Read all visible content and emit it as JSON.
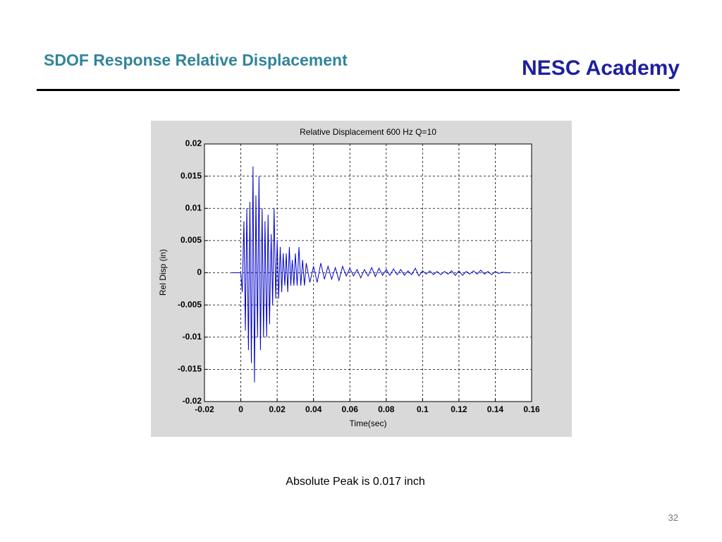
{
  "header": {
    "title": "SDOF Response Relative Displacement",
    "brand": "NESC Academy"
  },
  "caption": "Absolute Peak is 0.017 inch",
  "page_number": "32",
  "chart_data": {
    "type": "line",
    "title": "Relative Displacement 600 Hz  Q=10",
    "x_label": "Time(sec)",
    "y_label": "Rel Disp (in)",
    "xlim": [
      -0.02,
      0.16
    ],
    "xticks": [
      -0.02,
      0,
      0.02,
      0.04,
      0.06,
      0.08,
      0.1,
      0.12,
      0.14,
      0.16
    ],
    "ylim": [
      -0.02,
      0.02
    ],
    "yticks": [
      -0.02,
      -0.015,
      -0.01,
      -0.005,
      0,
      0.005,
      0.01,
      0.015,
      0.02
    ],
    "grid": true,
    "x": [
      -0.005,
      0,
      0.0008,
      0.0017,
      0.0025,
      0.0033,
      0.0042,
      0.005,
      0.0058,
      0.0067,
      0.0075,
      0.0083,
      0.0092,
      0.01,
      0.0108,
      0.0117,
      0.0125,
      0.0133,
      0.0142,
      0.015,
      0.0158,
      0.0167,
      0.0175,
      0.0183,
      0.0192,
      0.02,
      0.0208,
      0.0217,
      0.0225,
      0.0233,
      0.0242,
      0.025,
      0.0258,
      0.0267,
      0.0275,
      0.0283,
      0.0292,
      0.03,
      0.031,
      0.032,
      0.033,
      0.034,
      0.035,
      0.036,
      0.038,
      0.04,
      0.042,
      0.044,
      0.046,
      0.048,
      0.05,
      0.052,
      0.054,
      0.056,
      0.058,
      0.06,
      0.062,
      0.064,
      0.066,
      0.068,
      0.07,
      0.072,
      0.074,
      0.076,
      0.078,
      0.08,
      0.082,
      0.084,
      0.086,
      0.088,
      0.09,
      0.092,
      0.094,
      0.096,
      0.098,
      0.1,
      0.102,
      0.104,
      0.106,
      0.108,
      0.11,
      0.112,
      0.114,
      0.116,
      0.118,
      0.12,
      0.122,
      0.124,
      0.126,
      0.128,
      0.13,
      0.132,
      0.134,
      0.136,
      0.138,
      0.14,
      0.142,
      0.144,
      0.146,
      0.148
    ],
    "series": [
      {
        "color": "#0000cc",
        "values": [
          0,
          0,
          -0.003,
          0.008,
          -0.009,
          0.01,
          -0.012,
          0.011,
          -0.014,
          0.0165,
          -0.017,
          0.012,
          -0.01,
          0.015,
          -0.012,
          0.01,
          -0.01,
          0.008,
          -0.01,
          0.009,
          -0.008,
          0.006,
          -0.005,
          0.01,
          -0.004,
          0.005,
          -0.004,
          0.004,
          -0.003,
          0.003,
          -0.002,
          0.003,
          -0.003,
          0.004,
          -0.002,
          0.002,
          -0.002,
          0.003,
          -0.002,
          0.004,
          -0.002,
          0.002,
          -0.002,
          0.0015,
          -0.0015,
          0.001,
          -0.0015,
          0.0015,
          -0.001,
          0.001,
          -0.001,
          0.0008,
          -0.0012,
          0.001,
          -0.0005,
          0.0007,
          -0.0005,
          0.0005,
          -0.0008,
          0.0005,
          -0.0005,
          0.0008,
          -0.0006,
          0.0007,
          -0.0004,
          0.0005,
          -0.0004,
          0.0006,
          -0.0003,
          0.0005,
          -0.0004,
          0.0003,
          -0.0003,
          0.0007,
          -0.0005,
          0.0003,
          -0.0002,
          0.0003,
          -0.0003,
          0.0002,
          -0.0003,
          0.0002,
          -0.0002,
          0.0003,
          -0.0004,
          0.0003,
          -0.0004,
          0.0002,
          -0.0002,
          0.0003,
          -0.0002,
          0.0004,
          -0.0002,
          0.0002,
          -0.0003,
          0.0002,
          -0.0001,
          0.0001,
          0,
          0
        ]
      }
    ]
  }
}
